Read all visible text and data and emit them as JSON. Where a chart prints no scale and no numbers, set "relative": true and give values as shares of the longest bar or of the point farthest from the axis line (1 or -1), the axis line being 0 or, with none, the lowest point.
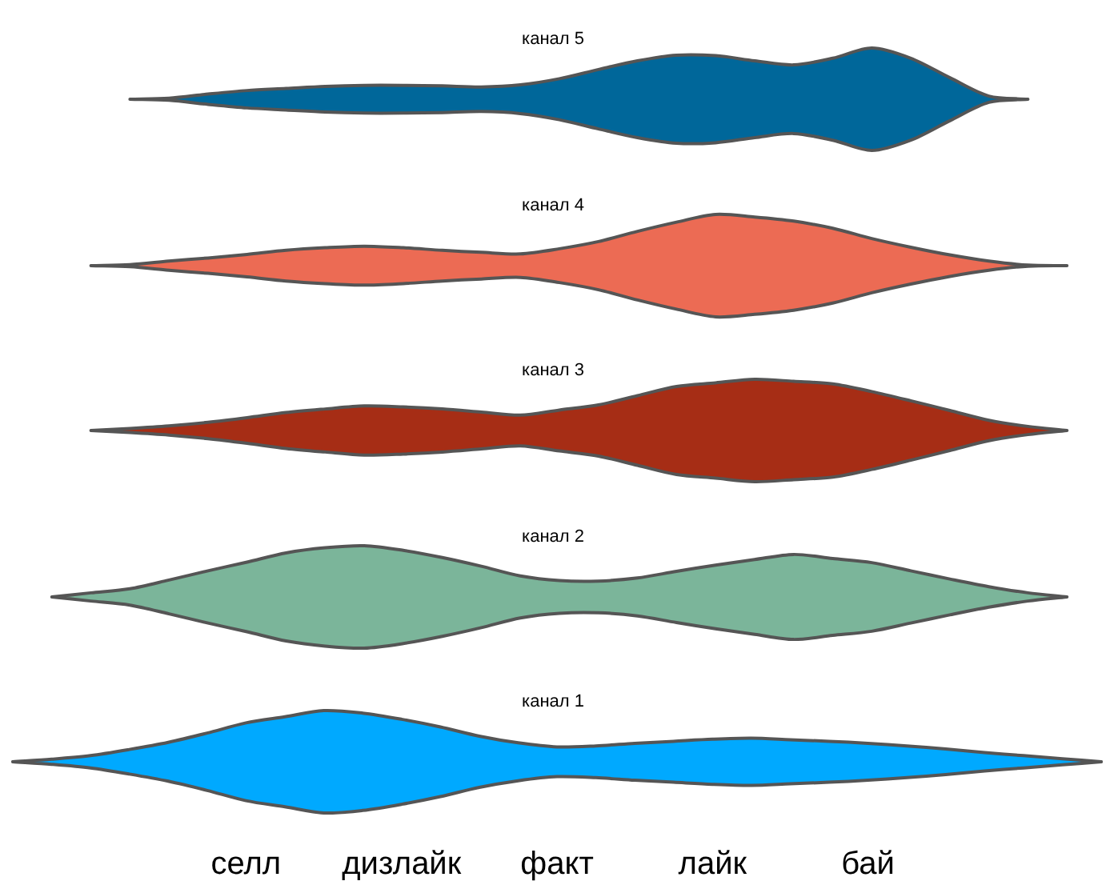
{
  "chart_data": [
    {
      "type": "area",
      "title": "канал 5",
      "relative": true,
      "color": "#00679a",
      "tick_labels": false,
      "categories": [
        null,
        null,
        null,
        null,
        null,
        null,
        null,
        null,
        null,
        null,
        null,
        null,
        null,
        null,
        null,
        null,
        null,
        null,
        null,
        null,
        null,
        null,
        null,
        null,
        null,
        null,
        null,
        null,
        null
      ],
      "values": [
        null,
        null,
        null,
        0,
        0.02,
        0.1,
        0.17,
        0.21,
        0.25,
        0.27,
        0.27,
        0.26,
        0.24,
        0.28,
        0.4,
        0.58,
        0.75,
        0.86,
        0.85,
        0.75,
        0.67,
        0.8,
        1,
        0.8,
        0.42,
        0.06,
        0,
        null,
        null
      ]
    },
    {
      "type": "area",
      "title": "канал 4",
      "relative": true,
      "color": "#ec6b54",
      "tick_labels": false,
      "categories": [
        null,
        null,
        null,
        null,
        null,
        null,
        null,
        null,
        null,
        null,
        null,
        null,
        null,
        null,
        null,
        null,
        null,
        null,
        null,
        null,
        null,
        null,
        null,
        null,
        null,
        null,
        null,
        null,
        null
      ],
      "values": [
        null,
        null,
        0,
        0.02,
        0.09,
        0.15,
        0.22,
        0.3,
        0.35,
        0.38,
        0.35,
        0.3,
        0.26,
        0.23,
        0.33,
        0.47,
        0.67,
        0.85,
        1,
        0.95,
        0.87,
        0.73,
        0.53,
        0.36,
        0.21,
        0.09,
        0.01,
        0,
        null
      ]
    },
    {
      "type": "area",
      "title": "канал 3",
      "relative": true,
      "color": "#a62d15",
      "tick_labels": false,
      "categories": [
        null,
        null,
        null,
        null,
        null,
        null,
        null,
        null,
        null,
        null,
        null,
        null,
        null,
        null,
        null,
        null,
        null,
        null,
        null,
        null,
        null,
        null,
        null,
        null,
        null,
        null,
        null,
        null,
        null
      ],
      "values": [
        null,
        null,
        0,
        0.04,
        0.09,
        0.16,
        0.25,
        0.35,
        0.42,
        0.48,
        0.46,
        0.42,
        0.36,
        0.3,
        0.4,
        0.5,
        0.68,
        0.86,
        0.93,
        1,
        0.96,
        0.91,
        0.76,
        0.58,
        0.39,
        0.2,
        0.08,
        0,
        null
      ]
    },
    {
      "type": "area",
      "title": "канал 2",
      "relative": true,
      "color": "#7bb59a",
      "tick_labels": false,
      "categories": [
        null,
        null,
        null,
        null,
        null,
        null,
        null,
        null,
        null,
        null,
        null,
        null,
        null,
        null,
        null,
        null,
        null,
        null,
        null,
        null,
        null,
        null,
        null,
        null,
        null,
        null,
        null,
        null,
        null
      ],
      "values": [
        null,
        0,
        0.08,
        0.16,
        0.33,
        0.51,
        0.68,
        0.86,
        0.96,
        1,
        0.91,
        0.77,
        0.6,
        0.41,
        0.32,
        0.31,
        0.37,
        0.5,
        0.62,
        0.73,
        0.83,
        0.75,
        0.67,
        0.51,
        0.35,
        0.2,
        0.08,
        0,
        null
      ]
    },
    {
      "type": "area",
      "title": "канал 1",
      "relative": true,
      "color": "#00a9ff",
      "tick_labels": "x",
      "categories": [
        null,
        null,
        null,
        null,
        null,
        null,
        "селл",
        null,
        null,
        null,
        "дизлайк",
        null,
        null,
        null,
        "факт",
        null,
        null,
        null,
        "лайк",
        null,
        null,
        null,
        "бай",
        null,
        null,
        null,
        null,
        null,
        null
      ],
      "values": [
        0,
        0.05,
        0.12,
        0.24,
        0.38,
        0.56,
        0.76,
        0.88,
        1,
        0.95,
        0.83,
        0.68,
        0.5,
        0.37,
        0.29,
        0.31,
        0.36,
        0.4,
        0.44,
        0.46,
        0.43,
        0.4,
        0.36,
        0.31,
        0.25,
        0.18,
        0.12,
        0.06,
        0
      ]
    }
  ]
}
